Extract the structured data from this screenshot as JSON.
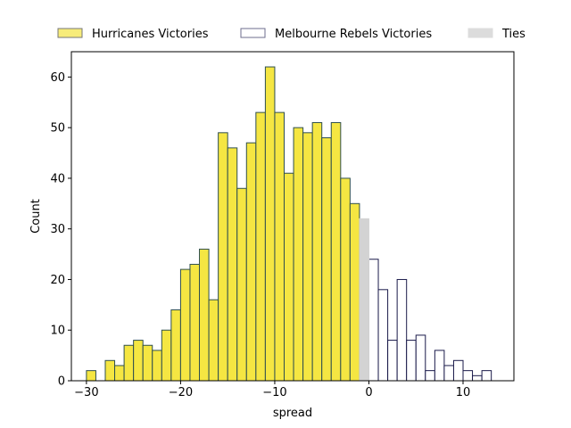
{
  "chart_data": {
    "type": "bar",
    "title": "",
    "xlabel": "spread",
    "ylabel": "Count",
    "xlim": [
      -31.6,
      15.4
    ],
    "ylim": [
      0,
      65
    ],
    "xticks": [
      -30,
      -20,
      -10,
      0,
      10
    ],
    "xtick_labels": [
      "−30",
      "−20",
      "−10",
      "0",
      "10"
    ],
    "yticks": [
      0,
      10,
      20,
      30,
      40,
      50,
      60
    ],
    "grid": false,
    "legend_placement": "top, above plot",
    "bin_width": 1,
    "series": [
      {
        "name": "Hurricanes Victories",
        "color": "#f5e642",
        "edge": "#2f4f4f",
        "bins": [
          {
            "x0": -30,
            "count": 2
          },
          {
            "x0": -28,
            "count": 4
          },
          {
            "x0": -27,
            "count": 3
          },
          {
            "x0": -26,
            "count": 7
          },
          {
            "x0": -25,
            "count": 8
          },
          {
            "x0": -24,
            "count": 7
          },
          {
            "x0": -23,
            "count": 6
          },
          {
            "x0": -22,
            "count": 10
          },
          {
            "x0": -21,
            "count": 14
          },
          {
            "x0": -20,
            "count": 22
          },
          {
            "x0": -19,
            "count": 23
          },
          {
            "x0": -18,
            "count": 26
          },
          {
            "x0": -17,
            "count": 16
          },
          {
            "x0": -16,
            "count": 49
          },
          {
            "x0": -15,
            "count": 46
          },
          {
            "x0": -14,
            "count": 38
          },
          {
            "x0": -13,
            "count": 47
          },
          {
            "x0": -12,
            "count": 53
          },
          {
            "x0": -11,
            "count": 62
          },
          {
            "x0": -10,
            "count": 53
          },
          {
            "x0": -9,
            "count": 41
          },
          {
            "x0": -8,
            "count": 50
          },
          {
            "x0": -7,
            "count": 49
          },
          {
            "x0": -6,
            "count": 51
          },
          {
            "x0": -5,
            "count": 48
          },
          {
            "x0": -4,
            "count": 51
          },
          {
            "x0": -3,
            "count": 40
          },
          {
            "x0": -2,
            "count": 35
          }
        ]
      },
      {
        "name": "Melbourne Rebels Victories",
        "color": "#ffffff",
        "edge": "#1a1a4a",
        "bins": [
          {
            "x0": 0,
            "count": 24
          },
          {
            "x0": 1,
            "count": 18
          },
          {
            "x0": 2,
            "count": 8
          },
          {
            "x0": 3,
            "count": 20
          },
          {
            "x0": 4,
            "count": 8
          },
          {
            "x0": 5,
            "count": 9
          },
          {
            "x0": 6,
            "count": 2
          },
          {
            "x0": 7,
            "count": 6
          },
          {
            "x0": 8,
            "count": 3
          },
          {
            "x0": 9,
            "count": 4
          },
          {
            "x0": 10,
            "count": 2
          },
          {
            "x0": 11,
            "count": 1
          },
          {
            "x0": 12,
            "count": 2
          }
        ]
      },
      {
        "name": "Ties",
        "color": "#d3d3d3",
        "edge": "#d3d3d3",
        "bins": [
          {
            "x0": -1,
            "count": 32
          }
        ]
      }
    ]
  }
}
